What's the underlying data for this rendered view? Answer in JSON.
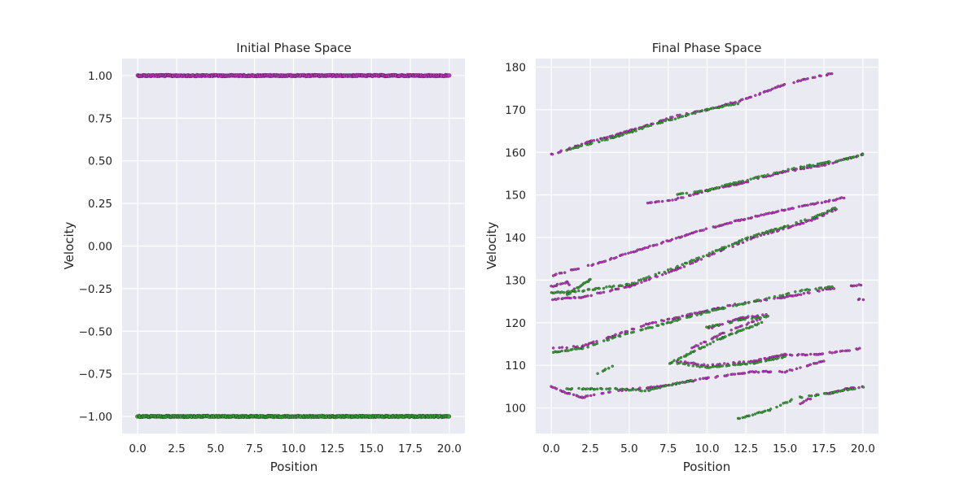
{
  "chart_data": [
    {
      "type": "scatter",
      "title": "Initial Phase Space",
      "xlabel": "Position",
      "ylabel": "Velocity",
      "xlim": [
        -1,
        21
      ],
      "ylim": [
        -1.1,
        1.1
      ],
      "xticks": [
        0,
        2.5,
        5,
        7.5,
        10,
        12.5,
        15,
        17.5,
        20
      ],
      "xtick_labels": [
        "0.0",
        "2.5",
        "5.0",
        "7.5",
        "10.0",
        "12.5",
        "15.0",
        "17.5",
        "20.0"
      ],
      "yticks": [
        -1,
        -0.75,
        -0.5,
        -0.25,
        0,
        0.25,
        0.5,
        0.75,
        1
      ],
      "ytick_labels": [
        "−1.00",
        "−0.75",
        "−0.50",
        "−0.25",
        "0.00",
        "0.25",
        "0.50",
        "0.75",
        "1.00"
      ],
      "grid": true,
      "series": [
        {
          "color": "#cc33cc",
          "segments": [
            [
              [
                0,
                1.0
              ],
              [
                20,
                1.0
              ]
            ]
          ]
        },
        {
          "color": "#33aa33",
          "segments": [
            [
              [
                0,
                -1.0
              ],
              [
                20,
                -1.0
              ]
            ]
          ]
        }
      ]
    },
    {
      "type": "scatter",
      "title": "Final Phase Space",
      "xlabel": "Position",
      "ylabel": "Velocity",
      "xlim": [
        -1,
        21
      ],
      "ylim": [
        94,
        182
      ],
      "xticks": [
        0,
        2.5,
        5,
        7.5,
        10,
        12.5,
        15,
        17.5,
        20
      ],
      "xtick_labels": [
        "0.0",
        "2.5",
        "5.0",
        "7.5",
        "10.0",
        "12.5",
        "15.0",
        "17.5",
        "20.0"
      ],
      "yticks": [
        100,
        110,
        120,
        130,
        140,
        150,
        160,
        170,
        180
      ],
      "ytick_labels": [
        "100",
        "110",
        "120",
        "130",
        "140",
        "150",
        "160",
        "170",
        "180"
      ],
      "grid": true,
      "series": [
        {
          "color": "#cc33cc",
          "segments": [
            [
              [
                0,
                159.5
              ],
              [
                2.5,
                162.5
              ],
              [
                5,
                165
              ],
              [
                8,
                168.5
              ],
              [
                10,
                170
              ],
              [
                12.5,
                172.5
              ],
              [
                15,
                176
              ],
              [
                18,
                178.5
              ]
            ],
            [
              [
                6,
                148
              ],
              [
                8,
                149
              ],
              [
                10,
                151
              ],
              [
                12.5,
                153
              ],
              [
                15,
                155.5
              ],
              [
                17.5,
                157
              ],
              [
                20,
                159.5
              ]
            ],
            [
              [
                0,
                131
              ],
              [
                3,
                134
              ],
              [
                6,
                137.5
              ],
              [
                9,
                141
              ],
              [
                12,
                144
              ],
              [
                15,
                146.5
              ],
              [
                19,
                149.5
              ]
            ],
            [
              [
                0,
                125.5
              ],
              [
                2,
                126
              ],
              [
                5,
                128.5
              ],
              [
                8,
                132.5
              ],
              [
                11,
                137
              ],
              [
                13,
                140
              ],
              [
                15,
                142
              ],
              [
                17,
                144.5
              ],
              [
                18.3,
                146.5
              ]
            ],
            [
              [
                0,
                128.5
              ],
              [
                1,
                129.5
              ],
              [
                1.5,
                128
              ]
            ],
            [
              [
                0,
                114
              ],
              [
                2,
                114.5
              ],
              [
                4,
                117
              ],
              [
                6,
                119.5
              ],
              [
                9,
                122
              ],
              [
                12,
                124.5
              ],
              [
                15,
                126
              ],
              [
                18,
                128
              ],
              [
                20,
                129
              ]
            ],
            [
              [
                10,
                118.5
              ],
              [
                12,
                121
              ],
              [
                14,
                122
              ]
            ],
            [
              [
                8,
                111
              ],
              [
                10,
                110
              ],
              [
                13,
                111
              ],
              [
                15,
                112.5
              ],
              [
                17,
                112.5
              ],
              [
                20,
                114
              ]
            ],
            [
              [
                9,
                114
              ],
              [
                11,
                117.5
              ],
              [
                13.5,
                121
              ]
            ],
            [
              [
                0,
                105
              ],
              [
                1,
                103.5
              ],
              [
                2,
                102.5
              ],
              [
                4,
                104
              ],
              [
                7,
                105
              ],
              [
                10,
                107
              ],
              [
                13,
                108.5
              ],
              [
                15,
                108.5
              ],
              [
                17.5,
                111
              ]
            ],
            [
              [
                16,
                101
              ],
              [
                17,
                103
              ],
              [
                18,
                103.5
              ],
              [
                19,
                104.5
              ],
              [
                20,
                105
              ]
            ],
            [
              [
                19.5,
                125.5
              ],
              [
                20,
                125.5
              ]
            ]
          ]
        },
        {
          "color": "#33aa33",
          "segments": [
            [
              [
                1,
                160.5
              ],
              [
                4,
                163.5
              ],
              [
                7,
                167
              ],
              [
                10,
                170
              ],
              [
                12,
                171.5
              ]
            ],
            [
              [
                8,
                150
              ],
              [
                10,
                151
              ],
              [
                13,
                154
              ],
              [
                16,
                156.5
              ],
              [
                19,
                158.5
              ],
              [
                20,
                159.5
              ]
            ],
            [
              [
                0,
                127
              ],
              [
                2,
                127.5
              ],
              [
                5,
                129
              ],
              [
                8,
                133
              ],
              [
                11,
                137.5
              ],
              [
                13,
                140.5
              ],
              [
                15,
                142.5
              ],
              [
                17,
                145
              ],
              [
                18.3,
                147
              ]
            ],
            [
              [
                1,
                126.5
              ],
              [
                2,
                129
              ],
              [
                2.7,
                130.5
              ]
            ],
            [
              [
                0,
                113
              ],
              [
                2,
                114
              ],
              [
                4,
                116.5
              ],
              [
                7,
                119.5
              ],
              [
                10,
                122.5
              ],
              [
                13,
                125
              ],
              [
                16,
                127.5
              ],
              [
                18,
                128.5
              ]
            ],
            [
              [
                10,
                119
              ],
              [
                12,
                120.5
              ],
              [
                14,
                121.5
              ]
            ],
            [
              [
                7.6,
                110.5
              ],
              [
                9,
                113
              ],
              [
                11,
                116.5
              ],
              [
                13.5,
                120
              ]
            ],
            [
              [
                8,
                110.5
              ],
              [
                10,
                109.5
              ],
              [
                13,
                110.5
              ],
              [
                15,
                112
              ]
            ],
            [
              [
                1,
                104.5
              ],
              [
                2.5,
                104.5
              ],
              [
                4,
                104.5
              ],
              [
                6,
                104
              ],
              [
                9,
                106.5
              ]
            ],
            [
              [
                3,
                108
              ],
              [
                4,
                110
              ]
            ],
            [
              [
                12,
                97.5
              ],
              [
                14,
                99.5
              ],
              [
                15.5,
                102
              ]
            ],
            [
              [
                16,
                102.5
              ],
              [
                18,
                103.5
              ],
              [
                20,
                105
              ]
            ]
          ]
        }
      ]
    }
  ]
}
